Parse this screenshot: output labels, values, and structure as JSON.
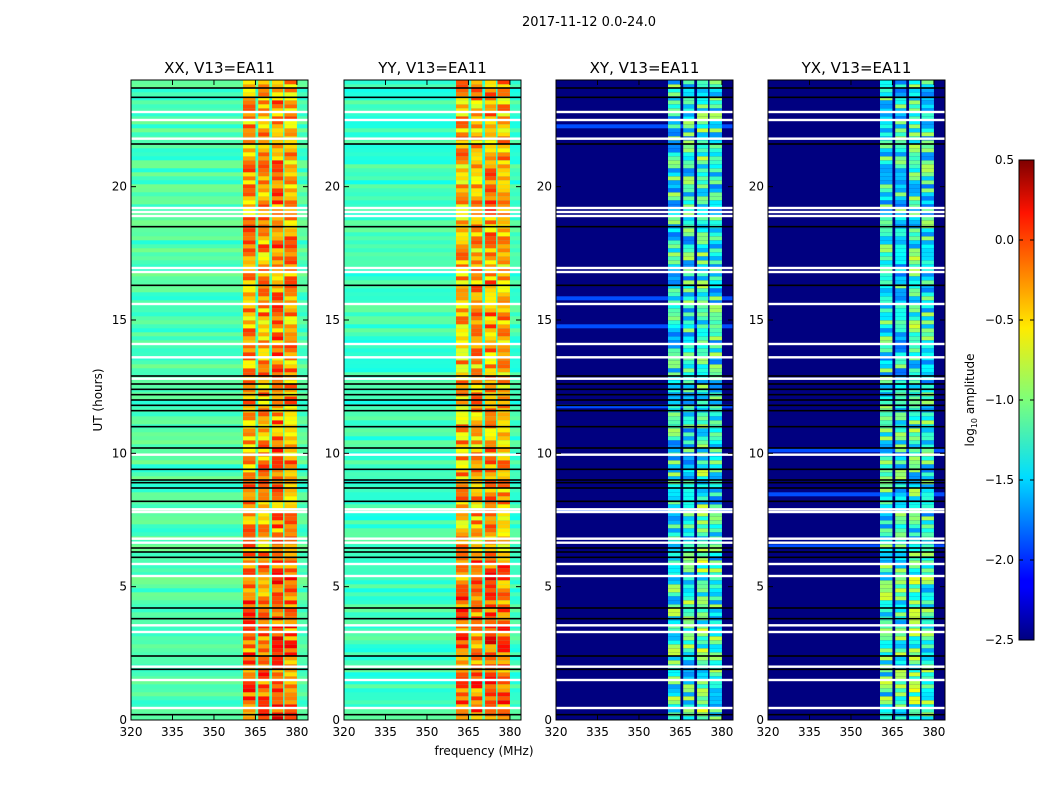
{
  "chart_data": {
    "type": "heatmap",
    "title": "2017-11-12 0.0-24.0",
    "xlabel": "frequency (MHz)",
    "ylabel": "UT (hours)",
    "xlim": [
      320,
      384
    ],
    "ylim": [
      0,
      24
    ],
    "xticks": [
      320,
      335,
      350,
      365,
      380
    ],
    "yticks": [
      0,
      5,
      10,
      15,
      20
    ],
    "colormap": "jet",
    "colorbar": {
      "label_main": "log",
      "label_sub": "10",
      "label_rest": " amplitude",
      "range": [
        -2.5,
        0.5
      ],
      "ticks": [
        "0.5",
        "0.0",
        "−0.5",
        "−1.0",
        "−1.5",
        "−2.0",
        "−2.5"
      ],
      "tick_values": [
        0.5,
        0.0,
        -0.5,
        -1.0,
        -1.5,
        -2.0,
        -2.5
      ]
    },
    "high_signal_bands_mhz": [
      [
        360.5,
        365
      ],
      [
        366,
        370
      ],
      [
        371,
        375
      ],
      [
        375.5,
        380
      ]
    ],
    "panels": [
      {
        "title": "XX, V13=EA11",
        "background_log_amp": -1.15,
        "band_log_amp": [
          -0.7,
          0.2
        ],
        "early_band_boost": 0.15
      },
      {
        "title": "YY, V13=EA11",
        "background_log_amp": -1.2,
        "band_log_amp": [
          -0.75,
          0.15
        ],
        "early_band_boost": 0.2
      },
      {
        "title": "XY, V13=EA11",
        "background_log_amp": -2.5,
        "band_log_amp": [
          -1.8,
          -0.6
        ],
        "early_band_boost": 0.1
      },
      {
        "title": "YX, V13=EA11",
        "background_log_amp": -2.5,
        "band_log_amp": [
          -1.8,
          -0.6
        ],
        "early_band_boost": 0.1
      }
    ],
    "flagged_hours_white": [
      0.45,
      1.5,
      2.0,
      3.3,
      3.55,
      5.4,
      5.85,
      6.65,
      6.8,
      7.8,
      7.9,
      9.95,
      12.8,
      13.6,
      14.1,
      15.6,
      16.8,
      16.95,
      18.9,
      19.05,
      19.2,
      21.8,
      22.5,
      22.8
    ],
    "flagged_hours_black": [
      0.2,
      1.9,
      2.4,
      4.2,
      3.8,
      6.1,
      6.3,
      6.45,
      8.2,
      8.7,
      8.9,
      9.0,
      9.4,
      10.2,
      11.0,
      11.6,
      11.8,
      12.0,
      12.2,
      12.4,
      12.6,
      12.9,
      16.3,
      18.5,
      21.6,
      23.35,
      23.7
    ]
  }
}
